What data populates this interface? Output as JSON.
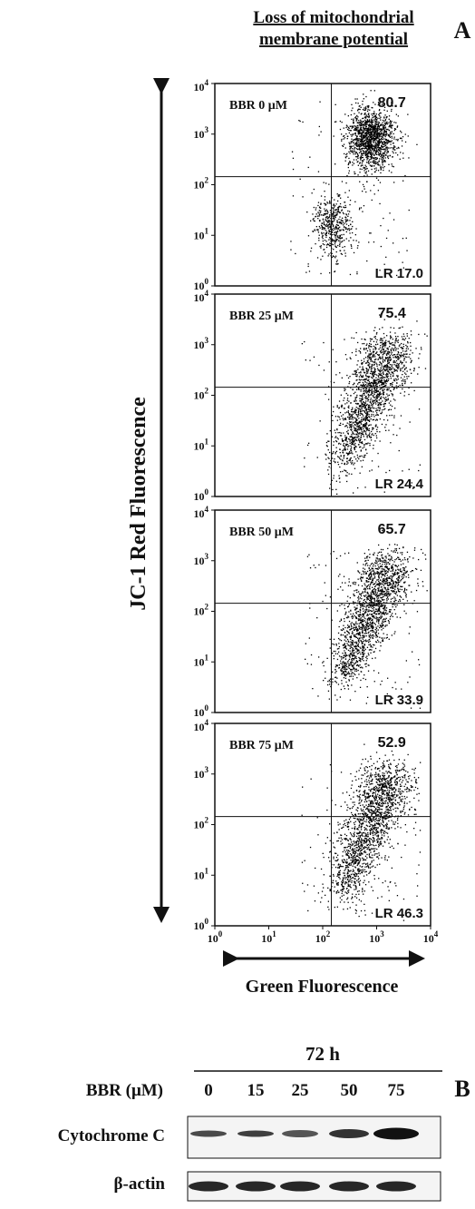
{
  "panel_a": {
    "label": "A",
    "title_lines": [
      "Loss of mitochondrial",
      "membrane potential"
    ],
    "y_axis_label": "JC-1 Red Fluorescence",
    "x_axis_label": "Green Fluorescence",
    "tick_base": "10",
    "tick_exponents": [
      "0",
      "1",
      "2",
      "3",
      "4"
    ],
    "plots": [
      {
        "label": "BBR 0 μM",
        "upper_right": "80.7",
        "lower_right": "LR 17.0"
      },
      {
        "label": "BBR 25 μM",
        "upper_right": "75.4",
        "lower_right": "LR 24.4"
      },
      {
        "label": "BBR 50 μM",
        "upper_right": "65.7",
        "lower_right": "LR 33.9"
      },
      {
        "label": "BBR 75 μM",
        "upper_right": "52.9",
        "lower_right": "LR 46.3"
      }
    ]
  },
  "panel_b": {
    "label": "B",
    "time": "72 h",
    "dose_label": "BBR (μM)",
    "doses": [
      "0",
      "15",
      "25",
      "50",
      "75"
    ],
    "blots": [
      "Cytochrome C",
      "β-actin"
    ]
  }
}
